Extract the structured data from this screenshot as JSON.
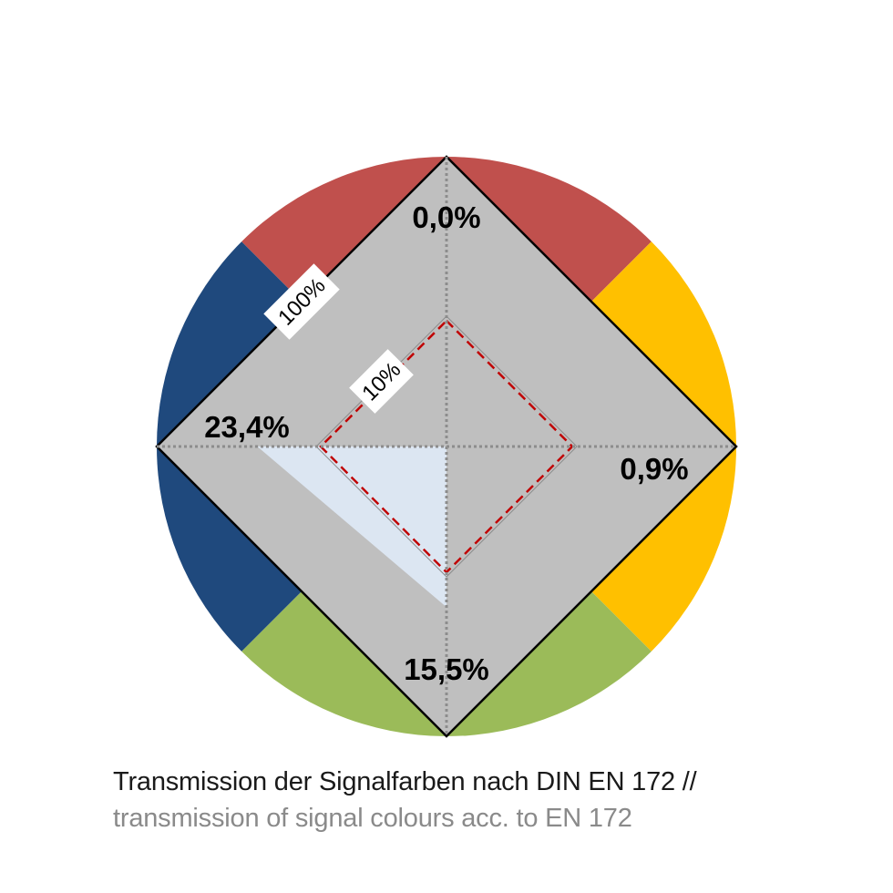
{
  "chart_data": {
    "type": "radar",
    "axes": [
      "red",
      "yellow",
      "green",
      "blue"
    ],
    "values": [
      0.0,
      0.9,
      15.5,
      23.4
    ],
    "value_labels": [
      "0,0%",
      "0,9%",
      "15,5%",
      "23,4%"
    ],
    "reference_levels": [
      {
        "label": "100%",
        "value": 100
      },
      {
        "label": "10%",
        "value": 10
      }
    ],
    "scale": "log",
    "grid": true
  },
  "colors": {
    "red": "#c0504d",
    "yellow": "#ffc000",
    "green": "#9bbb59",
    "blue": "#1f497d",
    "diamond_fill": "#bfbfbf",
    "data_fill": "#dce6f2",
    "threshold_line": "#c00000",
    "axis_line": "#8c8c8c"
  },
  "caption": {
    "line1": "Transmission der Signalfarben nach DIN EN 172 //",
    "line2": "transmission of signal colours acc. to EN 172"
  }
}
